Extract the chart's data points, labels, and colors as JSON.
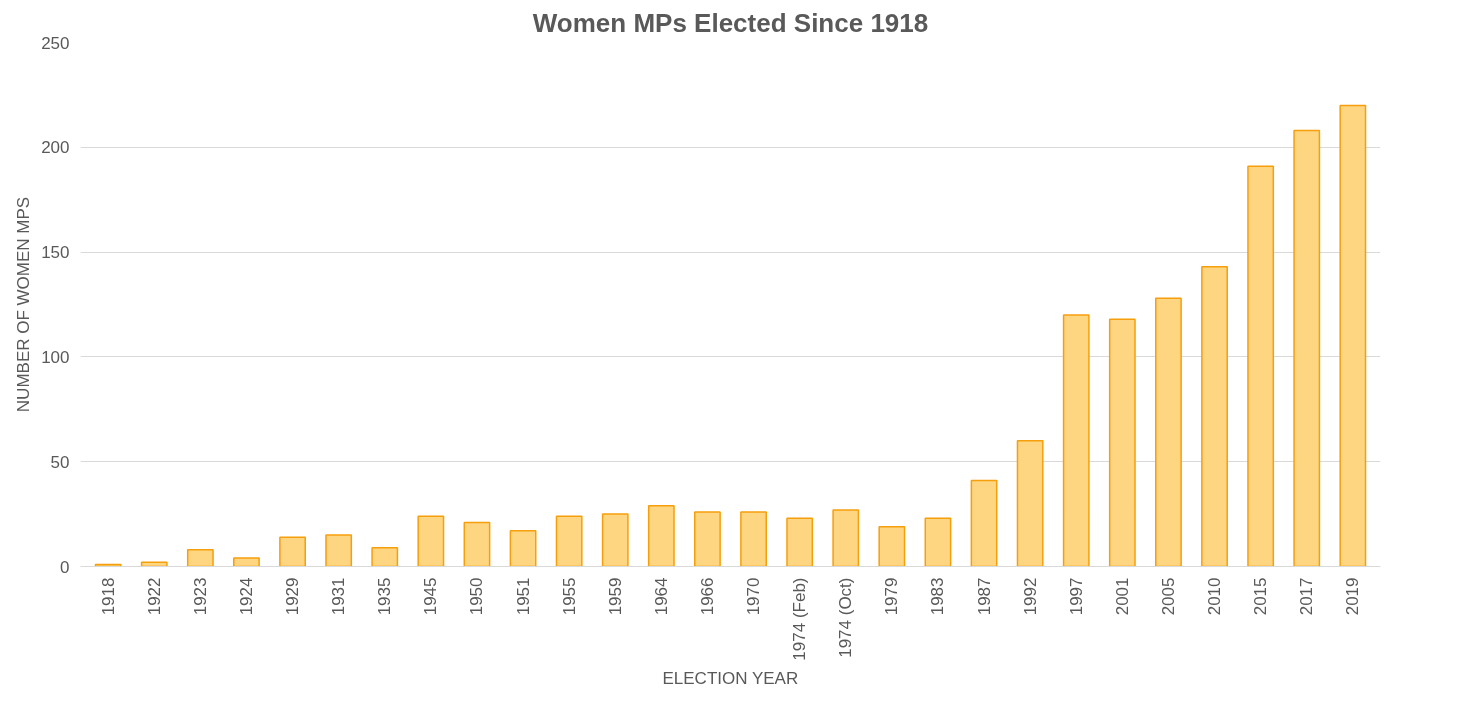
{
  "chart_data": {
    "type": "bar",
    "title": "Women MPs Elected Since 1918",
    "xlabel": "ELECTION YEAR",
    "ylabel": "NUMBER OF WOMEN MPS",
    "categories": [
      "1918",
      "1922",
      "1923",
      "1924",
      "1929",
      "1931",
      "1935",
      "1945",
      "1950",
      "1951",
      "1955",
      "1959",
      "1964",
      "1966",
      "1970",
      "1974 (Feb)",
      "1974 (Oct)",
      "1979",
      "1983",
      "1987",
      "1992",
      "1997",
      "2001",
      "2005",
      "2010",
      "2015",
      "2017",
      "2019"
    ],
    "values": [
      1,
      2,
      8,
      4,
      14,
      15,
      9,
      24,
      21,
      17,
      24,
      25,
      29,
      26,
      26,
      23,
      27,
      19,
      23,
      41,
      60,
      120,
      118,
      128,
      143,
      191,
      208,
      220
    ],
    "color": "#fed580",
    "ylim": [
      0,
      250
    ],
    "yticks": [
      0,
      50,
      100,
      150,
      200,
      250
    ],
    "grid": "y"
  }
}
